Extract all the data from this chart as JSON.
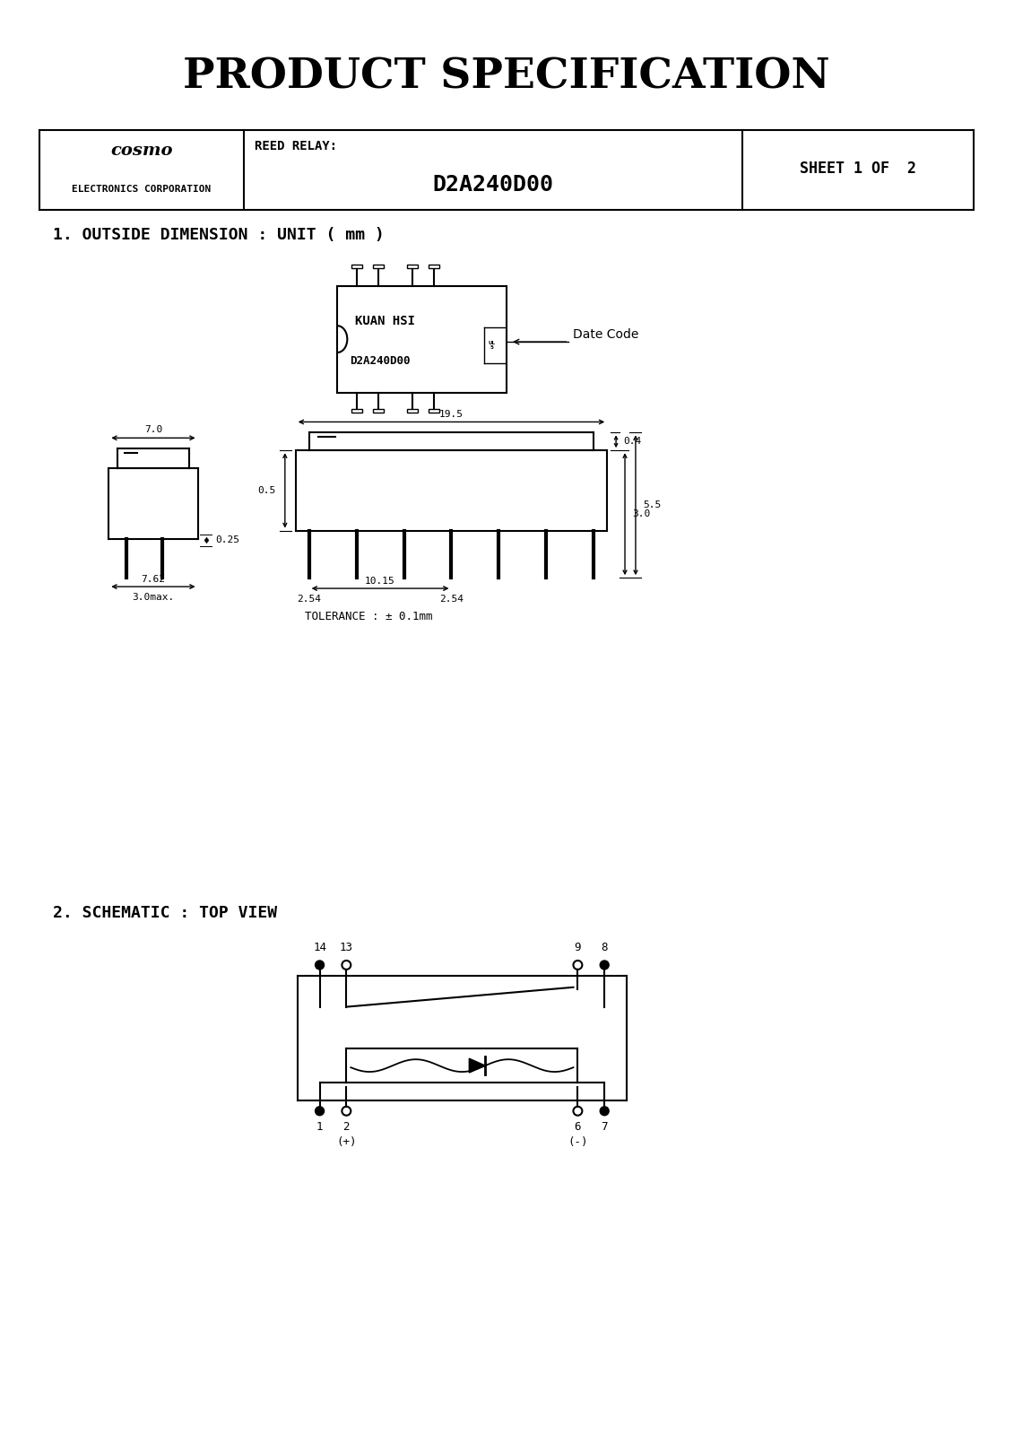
{
  "title": "PRODUCT SPECIFICATION",
  "header_col1_line1": "cosmo",
  "header_col1_line2": "ELECTRONICS CORPORATION",
  "header_col2_line1": "REED RELAY:",
  "header_col2_line2": "D2A240D00",
  "header_col3": "SHEET 1 OF  2",
  "section1_title": "1. OUTSIDE DIMENSION : UNIT ( mm )",
  "section2_title": "2. SCHEMATIC : TOP VIEW",
  "tolerance_text": "TOLERANCE : ± 0.1mm",
  "package_label1": "KUAN HSI",
  "package_label2": "D2A240D00",
  "date_code_text": "Date Code",
  "dim_7_0": "7.0",
  "dim_0_25": "0.25",
  "dim_7_62": "7.62",
  "dim_3_0max": "3.0max.",
  "dim_19_5": "19.5",
  "dim_0_5": "0.5",
  "dim_10_15": "10.15",
  "dim_2_54_left": "2.54",
  "dim_2_54_right": "2.54",
  "dim_0_4": "0.4",
  "dim_5_5": "5.5",
  "dim_3_0": "3.0",
  "pin_14": "14",
  "pin_13": "13",
  "pin_9": "9",
  "pin_8": "8",
  "pin_1": "1",
  "pin_2": "2",
  "pin_6": "6",
  "pin_7": "7",
  "pin_plus": "(+)",
  "pin_minus": "(-)",
  "bg_color": "#ffffff",
  "line_color": "#000000"
}
